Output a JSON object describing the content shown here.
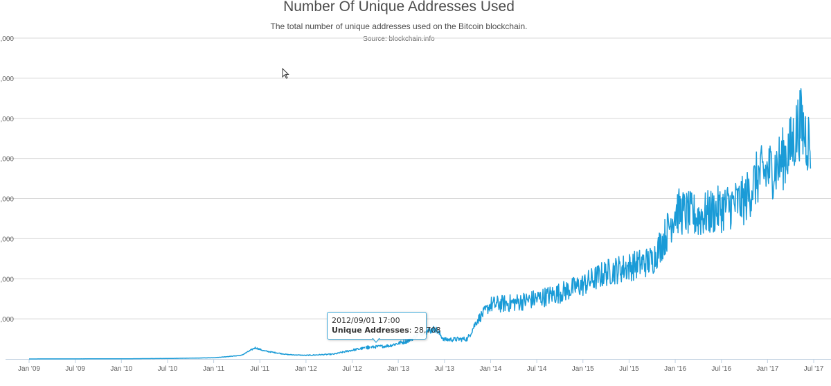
{
  "chart_data": {
    "type": "line",
    "title": "Number Of Unique Addresses Used",
    "subtitle": "The total number of unique addresses used on the Bitcoin blockchain.",
    "source": "Source: blockchain.info",
    "ylim": [
      0,
      800000
    ],
    "y_ticks": [
      100000,
      200000,
      300000,
      400000,
      500000,
      600000,
      700000,
      800000
    ],
    "y_tick_labels": [
      ",000",
      ",000",
      ",000",
      ",000",
      ",000",
      ",000",
      ",000",
      ",000"
    ],
    "x_tick_labels": [
      "Jan '09",
      "Jul '09",
      "Jan '10",
      "Jul '10",
      "Jan '11",
      "Jul '11",
      "Jan '12",
      "Jul '12",
      "Jan '13",
      "Jul '13",
      "Jan '14",
      "Jul '14",
      "Jan '15",
      "Jul '15",
      "Jan '16",
      "Jul '16",
      "Jan '17",
      "Jul '17"
    ],
    "x_range": [
      2009.0,
      2017.5
    ],
    "series": [
      {
        "name": "Unique Addresses",
        "color": "#1a9bd7",
        "points": [
          [
            2009.0,
            50
          ],
          [
            2010.0,
            400
          ],
          [
            2010.5,
            1200
          ],
          [
            2011.0,
            3000
          ],
          [
            2011.3,
            9000
          ],
          [
            2011.45,
            28000
          ],
          [
            2011.55,
            20000
          ],
          [
            2011.8,
            11000
          ],
          [
            2012.0,
            9000
          ],
          [
            2012.3,
            12000
          ],
          [
            2012.5,
            22000
          ],
          [
            2012.67,
            28708
          ],
          [
            2012.9,
            33000
          ],
          [
            2013.1,
            45000
          ],
          [
            2013.25,
            65000
          ],
          [
            2013.4,
            75000
          ],
          [
            2013.5,
            48000
          ],
          [
            2013.75,
            50000
          ],
          [
            2013.85,
            95000
          ],
          [
            2014.0,
            135000
          ],
          [
            2014.25,
            140000
          ],
          [
            2014.5,
            150000
          ],
          [
            2014.75,
            165000
          ],
          [
            2015.0,
            185000
          ],
          [
            2015.25,
            215000
          ],
          [
            2015.5,
            230000
          ],
          [
            2015.75,
            245000
          ],
          [
            2015.9,
            310000
          ],
          [
            2016.0,
            370000
          ],
          [
            2016.25,
            355000
          ],
          [
            2016.5,
            375000
          ],
          [
            2016.75,
            395000
          ],
          [
            2016.9,
            455000
          ],
          [
            2017.1,
            480000
          ],
          [
            2017.25,
            525000
          ],
          [
            2017.35,
            590000
          ],
          [
            2017.45,
            540000
          ],
          [
            2017.47,
            540000
          ]
        ]
      }
    ]
  },
  "tooltip": {
    "time": "2012/09/01 17:00",
    "label": "Unique Addresses",
    "value": "28,708"
  },
  "colors": {
    "line": "#1a9bd7",
    "grid": "#d8d8d8",
    "tooltip_border": "#41a9d8"
  }
}
